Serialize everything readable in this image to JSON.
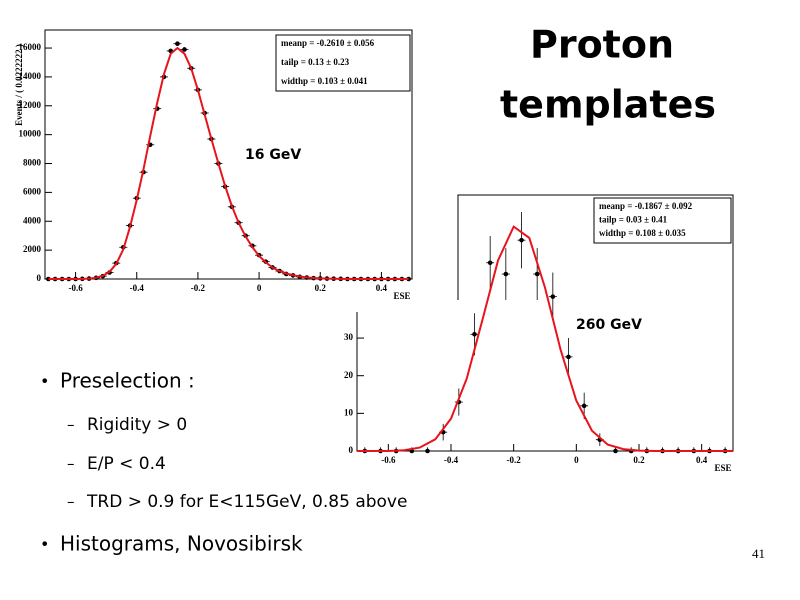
{
  "slide": {
    "title": [
      "Proton",
      "templates"
    ],
    "bullets": [
      {
        "text": "Preselection :",
        "sub": [
          "Rigidity > 0",
          "E/P < 0.4",
          "TRD > 0.9 for E<115GeV, 0.85 above"
        ]
      },
      {
        "text": "Histograms, Novosibirsk"
      }
    ],
    "page_number": "41"
  },
  "chart_data": [
    {
      "type": "scatter",
      "annotation": "16 GeV",
      "xlabel": "ESE",
      "ylabel": "Events / ( 0.0222222 )",
      "stats": [
        "meanp = -0.2610 ± 0.056",
        "tailp = 0.13 ± 0.23",
        "widthp = 0.103 ± 0.041"
      ],
      "xlim": [
        -0.7,
        0.5
      ],
      "ylim": [
        0,
        17250
      ],
      "xticks": [
        -0.6,
        -0.4,
        -0.2,
        0,
        0.2,
        0.4
      ],
      "yticks": [
        0,
        2000,
        4000,
        6000,
        8000,
        10000,
        12000,
        14000,
        16000
      ],
      "series": [
        {
          "style": "points",
          "color": "#000000",
          "x": [
            -0.689,
            -0.667,
            -0.644,
            -0.622,
            -0.6,
            -0.578,
            -0.556,
            -0.533,
            -0.511,
            -0.489,
            -0.467,
            -0.444,
            -0.422,
            -0.4,
            -0.378,
            -0.356,
            -0.333,
            -0.311,
            -0.289,
            -0.267,
            -0.244,
            -0.222,
            -0.2,
            -0.178,
            -0.156,
            -0.133,
            -0.111,
            -0.089,
            -0.067,
            -0.044,
            -0.022,
            0,
            0.022,
            0.044,
            0.067,
            0.089,
            0.111,
            0.133,
            0.156,
            0.178,
            0.2,
            0.222,
            0.244,
            0.267,
            0.289,
            0.311,
            0.333,
            0.356,
            0.378,
            0.4,
            0.422,
            0.444,
            0.467,
            0.489
          ],
          "values": [
            0,
            0,
            0,
            0,
            0,
            10,
            30,
            80,
            200,
            450,
            1100,
            2200,
            3700,
            5600,
            7400,
            9300,
            11800,
            14000,
            15800,
            16300,
            15900,
            14600,
            13100,
            11500,
            9700,
            8000,
            6400,
            5000,
            3900,
            3000,
            2300,
            1650,
            1200,
            800,
            550,
            350,
            250,
            150,
            100,
            60,
            40,
            30,
            20,
            10,
            0,
            0,
            0,
            0,
            0,
            0,
            0,
            0,
            0,
            0
          ]
        },
        {
          "style": "line",
          "color": "#e8141b",
          "x": [
            -0.689,
            -0.667,
            -0.644,
            -0.622,
            -0.6,
            -0.578,
            -0.556,
            -0.533,
            -0.511,
            -0.489,
            -0.467,
            -0.444,
            -0.422,
            -0.4,
            -0.378,
            -0.356,
            -0.333,
            -0.311,
            -0.289,
            -0.267,
            -0.244,
            -0.222,
            -0.2,
            -0.178,
            -0.156,
            -0.133,
            -0.111,
            -0.089,
            -0.067,
            -0.044,
            -0.022,
            0,
            0.022,
            0.044,
            0.067,
            0.089,
            0.111,
            0.133,
            0.156,
            0.178,
            0.2,
            0.222,
            0.244,
            0.267,
            0.289,
            0.311,
            0.333,
            0.356,
            0.378,
            0.4,
            0.422,
            0.444,
            0.467,
            0.489
          ],
          "values": [
            0,
            0,
            0,
            0,
            0,
            10,
            30,
            90,
            220,
            500,
            1050,
            2050,
            3600,
            5500,
            7600,
            9900,
            12200,
            14200,
            15600,
            16000,
            15600,
            14600,
            13100,
            11400,
            9700,
            8000,
            6450,
            5050,
            3900,
            2950,
            2200,
            1600,
            1150,
            800,
            550,
            380,
            260,
            170,
            110,
            70,
            45,
            30,
            18,
            10,
            0,
            0,
            0,
            0,
            0,
            0,
            0,
            0,
            0,
            0
          ]
        }
      ]
    },
    {
      "type": "scatter",
      "annotation": "260 GeV",
      "xlabel": "ESE",
      "stats": [
        "meanp = -0.1867 ± 0.092",
        "tailp = 0.03 ± 0.41",
        "widthp = 0.108 ± 0.035"
      ],
      "xlim": [
        -0.7,
        0.5
      ],
      "ylim": [
        0,
        68
      ],
      "xticks": [
        -0.6,
        -0.4,
        -0.2,
        0,
        0.2,
        0.4
      ],
      "yticks": [
        0,
        10,
        20,
        30
      ],
      "series": [
        {
          "style": "points",
          "color": "#000000",
          "x": [
            -0.675,
            -0.625,
            -0.575,
            -0.525,
            -0.475,
            -0.425,
            -0.375,
            -0.325,
            -0.275,
            -0.225,
            -0.175,
            -0.125,
            -0.075,
            -0.025,
            0.025,
            0.075,
            0.125,
            0.175,
            0.225,
            0.275,
            0.325,
            0.375,
            0.425,
            0.475
          ],
          "values": [
            0,
            0,
            0,
            0,
            0,
            5,
            13,
            31,
            50,
            47,
            56,
            47,
            41,
            25,
            12,
            3,
            0,
            0,
            0,
            0,
            0,
            0,
            0,
            0
          ],
          "errors": [
            1,
            1,
            1,
            1,
            1,
            2.2,
            3.6,
            5.6,
            7.1,
            6.9,
            7.5,
            6.9,
            6.4,
            5,
            3.5,
            1.7,
            1,
            1,
            1,
            1,
            1,
            1,
            1,
            1
          ]
        },
        {
          "style": "line",
          "color": "#e8141b",
          "x": [
            -0.7,
            -0.65,
            -0.6,
            -0.55,
            -0.5,
            -0.45,
            -0.4,
            -0.35,
            -0.3,
            -0.25,
            -0.2,
            -0.15,
            -0.1,
            -0.05,
            0,
            0.05,
            0.1,
            0.15,
            0.2,
            0.25,
            0.3,
            0.35,
            0.4,
            0.45,
            0.5
          ],
          "values": [
            0,
            0,
            0,
            0.2,
            0.9,
            3.1,
            8.6,
            19.2,
            34.7,
            50.6,
            59.6,
            56.6,
            43.4,
            26.8,
            13.4,
            5.4,
            1.7,
            0.5,
            0.1,
            0,
            0,
            0,
            0,
            0,
            0
          ]
        }
      ]
    }
  ]
}
